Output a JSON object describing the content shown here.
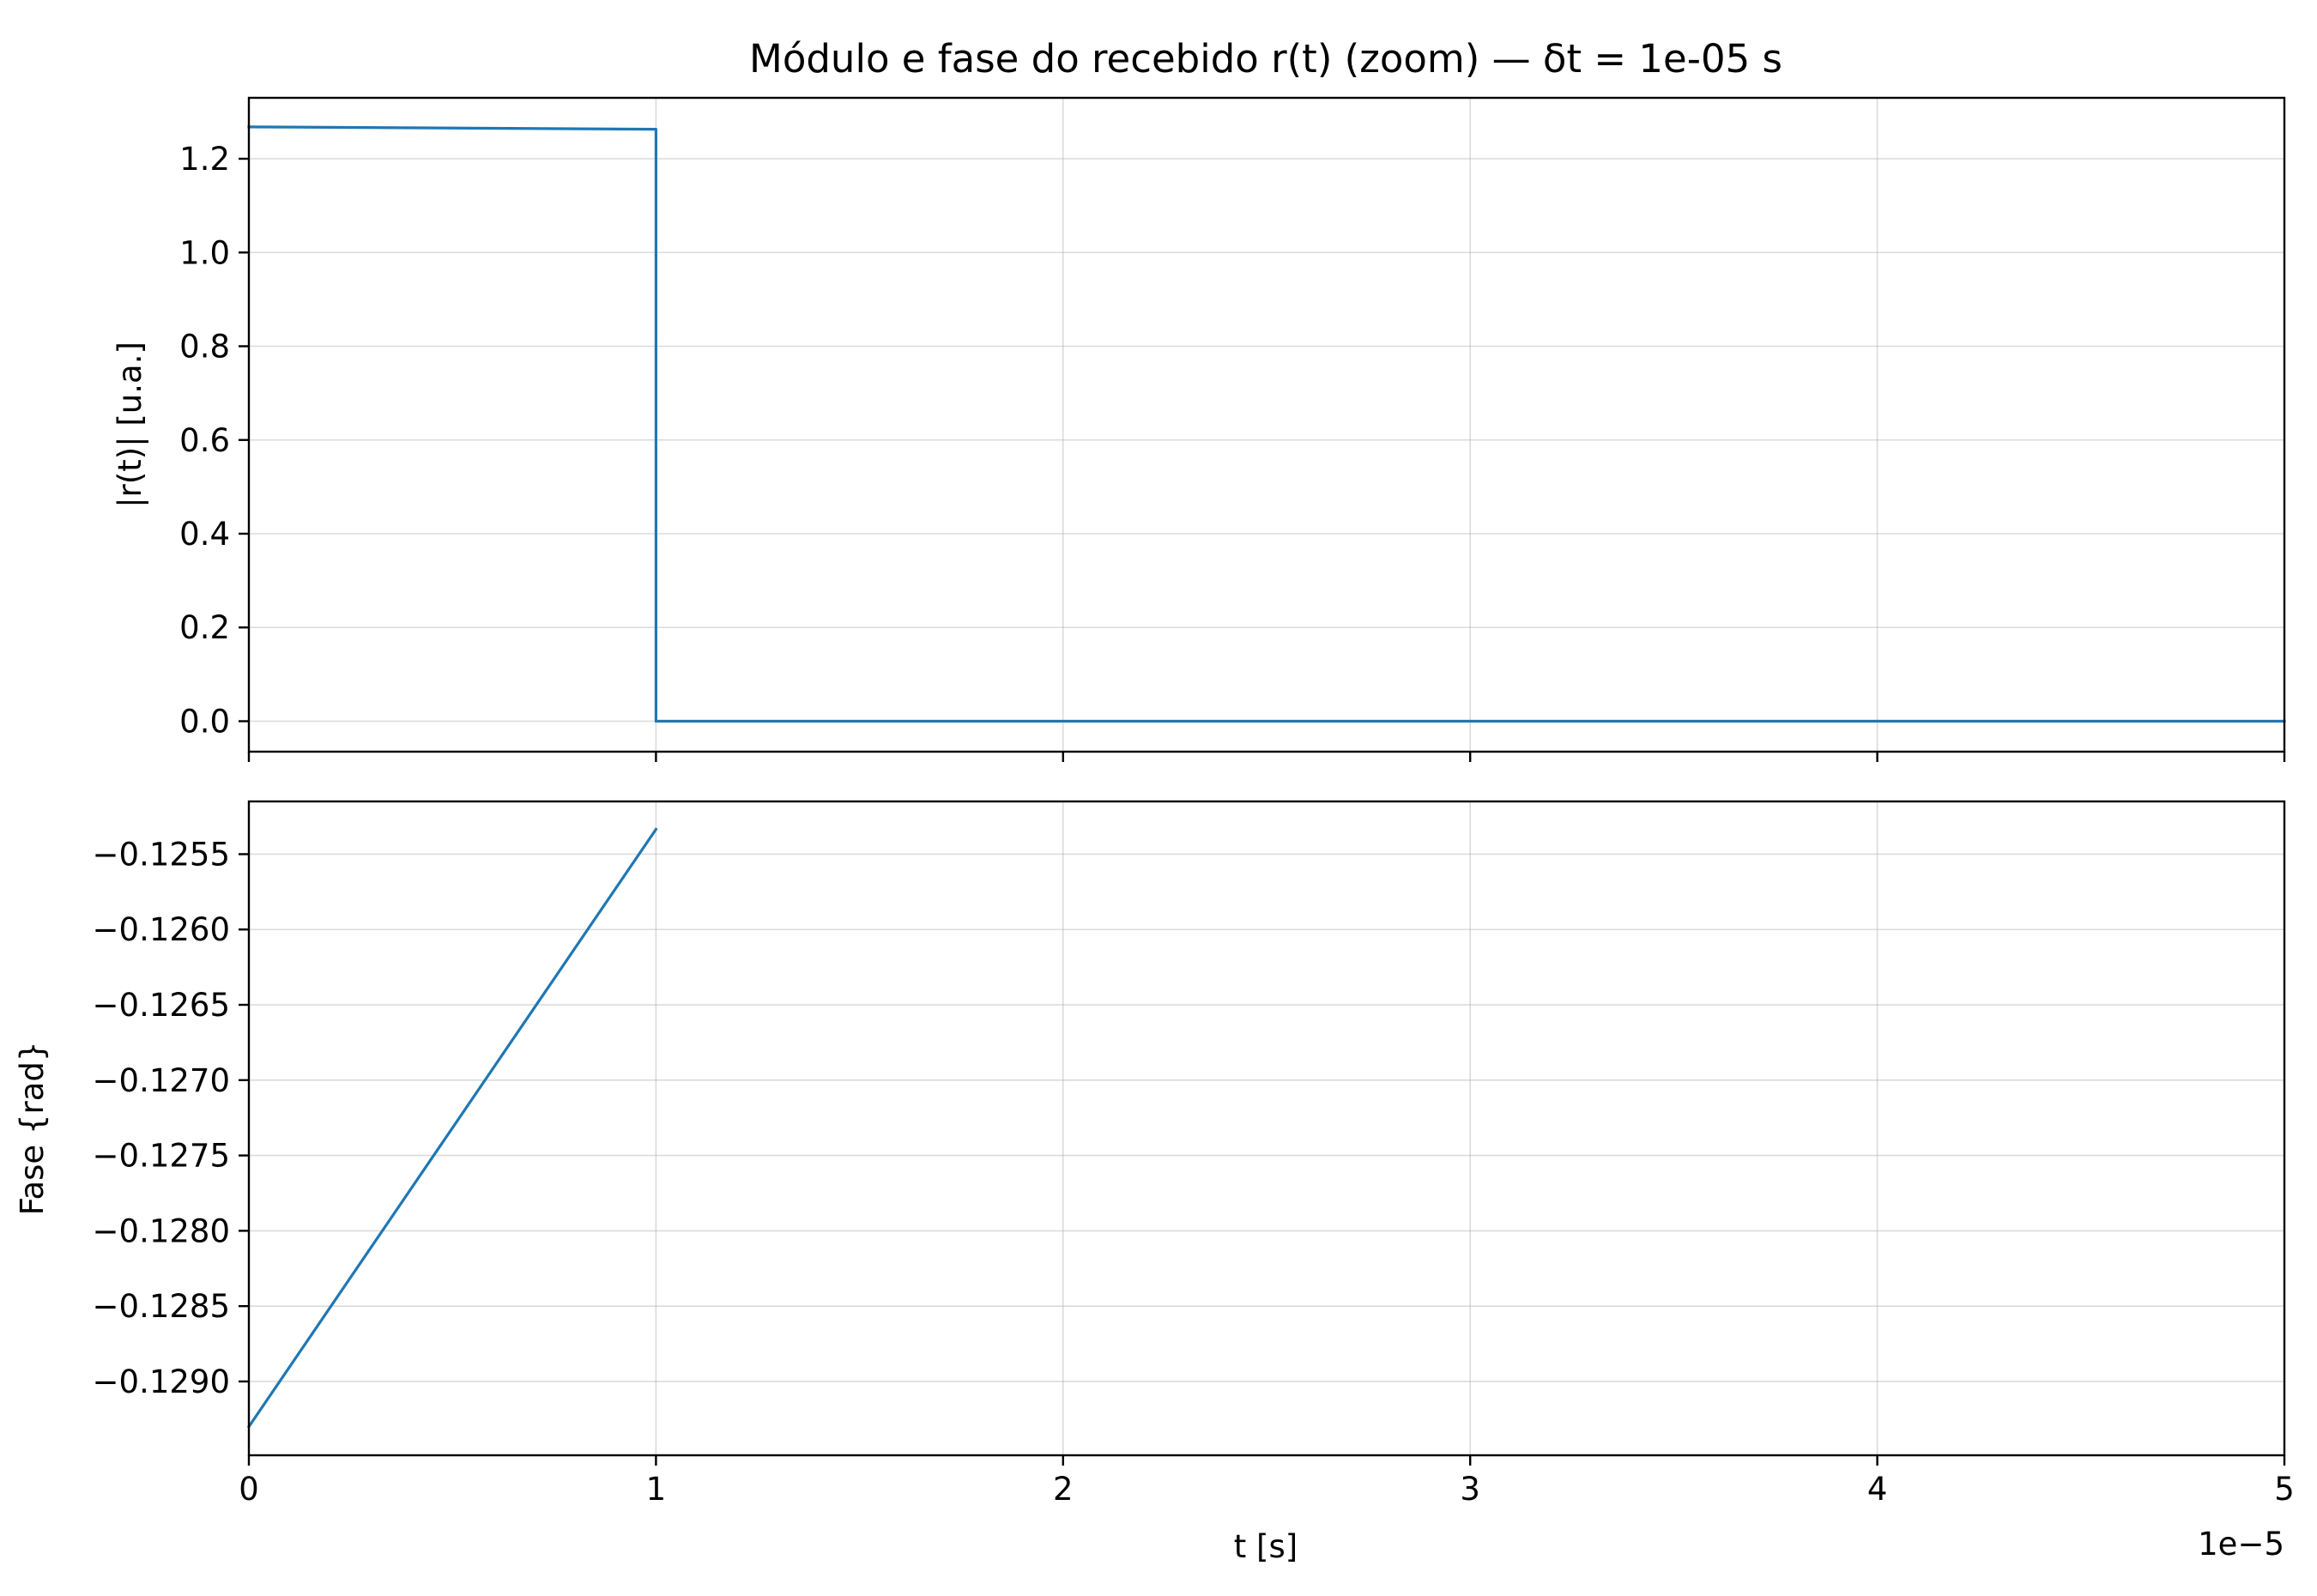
{
  "chart_data": {
    "type": "line",
    "title": "Módulo e fase do recebido r(t) (zoom) — δt = 1e-05 s",
    "shared_x": {
      "xlabel": "t [s]",
      "xlim": [
        0,
        5e-05
      ],
      "xticks": [
        0,
        1e-05,
        2e-05,
        3e-05,
        4e-05,
        5e-05
      ],
      "xtick_labels": [
        "0",
        "1",
        "2",
        "3",
        "4",
        "5"
      ],
      "offset_text": "1e−5"
    },
    "grid": true,
    "line_color": "#1f77b4",
    "subplots": [
      {
        "id": "magnitude",
        "ylabel": "|r(t)| [u.a.]",
        "ylim": [
          -0.065,
          1.33
        ],
        "yticks": [
          0.0,
          0.2,
          0.4,
          0.6,
          0.8,
          1.0,
          1.2
        ],
        "ytick_labels": [
          "0.0",
          "0.2",
          "0.4",
          "0.6",
          "0.8",
          "1.0",
          "1.2"
        ],
        "series": [
          {
            "name": "|r(t)|",
            "x": [
              0,
              1e-05,
              1e-05,
              5e-05
            ],
            "y": [
              1.268,
              1.263,
              0.0,
              0.0
            ]
          }
        ]
      },
      {
        "id": "phase",
        "ylabel": "Fase {rad}",
        "ylim": [
          -0.12949,
          -0.12515
        ],
        "yticks": [
          -0.129,
          -0.1285,
          -0.128,
          -0.1275,
          -0.127,
          -0.1265,
          -0.126,
          -0.1255
        ],
        "ytick_labels": [
          "−0.1290",
          "−0.1285",
          "−0.1280",
          "−0.1275",
          "−0.1270",
          "−0.1265",
          "−0.1260",
          "−0.1255"
        ],
        "series": [
          {
            "name": "fase",
            "x": [
              0,
              1e-05
            ],
            "y": [
              -0.1293,
              -0.125335
            ]
          }
        ]
      }
    ]
  }
}
